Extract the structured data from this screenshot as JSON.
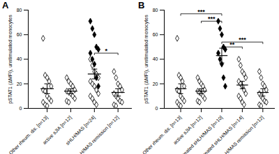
{
  "chart_data": [
    {
      "type": "scatter",
      "title": "A",
      "categories": [
        "Other rheum. dis. [n=13]",
        "active sJIA [n=12]",
        "sHLH/MAS [n=24]",
        "sHLH/MAS remission [n=12]"
      ],
      "ylabel": "pSTAT1 (ΔMFI), unstimulated monocytes",
      "ylim": [
        0,
        80
      ],
      "yticks": [
        0,
        20,
        40,
        60,
        80
      ],
      "series": [
        {
          "marker": "open-diamond",
          "color": "#000000",
          "values": [
            [
              57,
              27,
              25,
              22,
              18,
              15,
              14,
              10,
              8,
              6,
              5,
              3,
              2
            ],
            [
              25,
              22,
              20,
              18,
              15,
              14,
              13,
              12,
              10,
              8,
              6,
              5
            ],
            [
              40,
              35,
              30,
              28,
              25,
              22,
              20,
              18,
              15,
              12,
              10,
              8,
              5,
              3
            ],
            [
              30,
              25,
              20,
              18,
              15,
              12,
              10,
              8,
              6,
              5,
              3,
              2
            ]
          ]
        },
        {
          "marker": "filled-diamond",
          "color": "#000000",
          "values": [
            [],
            [],
            [
              71,
              65,
              60,
              50,
              48,
              45,
              40,
              36,
              25,
              18
            ],
            []
          ]
        }
      ],
      "means": [
        16,
        14,
        28,
        13
      ],
      "errors": [
        4,
        2,
        4,
        3
      ],
      "annotations": [
        {
          "text": "*",
          "from": 2,
          "to": 3,
          "y": 45
        }
      ]
    },
    {
      "type": "scatter",
      "title": "B",
      "categories": [
        "Other rheum. dis. [n=13]",
        "active sJIA [n=12]",
        "untreated sHLH/MAS [n=10]",
        "treated sHLH/MAS [n=14]",
        "sHLH/MAS remission [n=12]"
      ],
      "ylabel": "pSTAT1 (ΔMFI), unstimulated monocytes",
      "ylim": [
        0,
        80
      ],
      "yticks": [
        0,
        20,
        40,
        60,
        80
      ],
      "series": [
        {
          "marker": "open-diamond",
          "color": "#000000",
          "values": [
            [
              57,
              27,
              25,
              22,
              18,
              15,
              14,
              10,
              8,
              6,
              5,
              3,
              2
            ],
            [
              25,
              22,
              20,
              18,
              15,
              14,
              13,
              12,
              10,
              8,
              6,
              5
            ],
            [],
            [
              40,
              35,
              30,
              28,
              25,
              22,
              20,
              18,
              15,
              12,
              10,
              8,
              5,
              3
            ],
            [
              30,
              25,
              20,
              18,
              15,
              12,
              10,
              8,
              6,
              5,
              3,
              2
            ]
          ]
        },
        {
          "marker": "filled-diamond",
          "color": "#000000",
          "values": [
            [],
            [],
            [
              71,
              65,
              60,
              50,
              48,
              45,
              40,
              36,
              25,
              18
            ],
            [],
            []
          ]
        }
      ],
      "means": [
        16,
        14,
        43,
        19,
        13
      ],
      "errors": [
        4,
        2,
        6,
        3,
        3
      ],
      "annotations": [
        {
          "text": "***",
          "from": 0,
          "to": 2,
          "y": 77
        },
        {
          "text": "***",
          "from": 1,
          "to": 2,
          "y": 71
        },
        {
          "text": "**",
          "from": 2,
          "to": 3,
          "y": 50
        },
        {
          "text": "***",
          "from": 2,
          "to": 4,
          "y": 54
        }
      ]
    }
  ]
}
